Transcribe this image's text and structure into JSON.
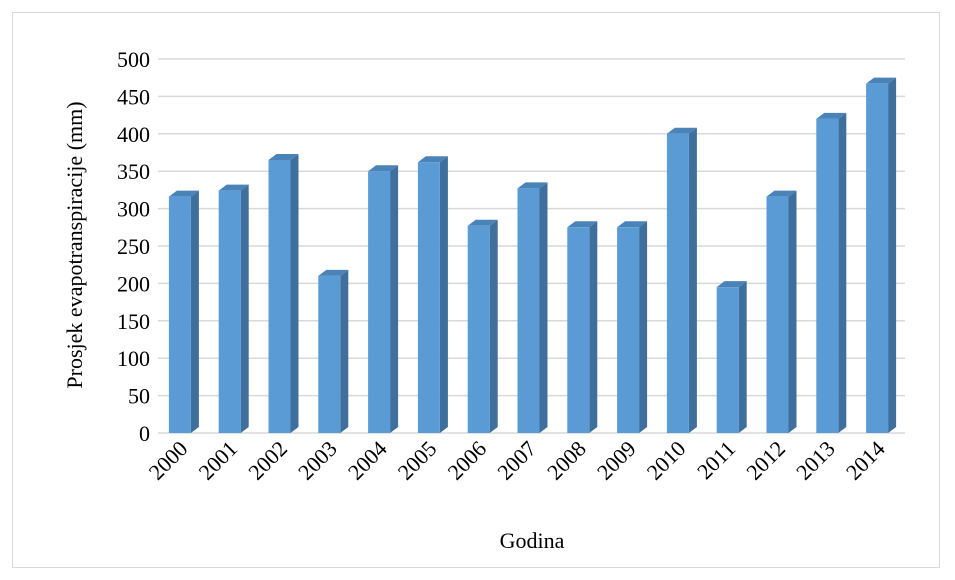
{
  "chart_data": {
    "type": "bar",
    "categories": [
      "2000",
      "2001",
      "2002",
      "2003",
      "2004",
      "2005",
      "2006",
      "2007",
      "2008",
      "2009",
      "2010",
      "2011",
      "2012",
      "2013",
      "2014"
    ],
    "values": [
      316,
      324,
      365,
      210,
      350,
      362,
      277,
      327,
      275,
      275,
      400,
      195,
      316,
      420,
      467
    ],
    "xlabel": "Godina",
    "ylabel": "Prosjek evapotranspiracije (mm)",
    "ylim": [
      0,
      500
    ],
    "yticks": [
      0,
      50,
      100,
      150,
      200,
      250,
      300,
      350,
      400,
      450,
      500
    ],
    "grid": true,
    "legend": "none",
    "colors": {
      "bar_front": "#5b9bd5",
      "bar_side": "#3f6f9c",
      "bar_top": "#4a83b8",
      "grid": "#d9d9d9"
    }
  }
}
